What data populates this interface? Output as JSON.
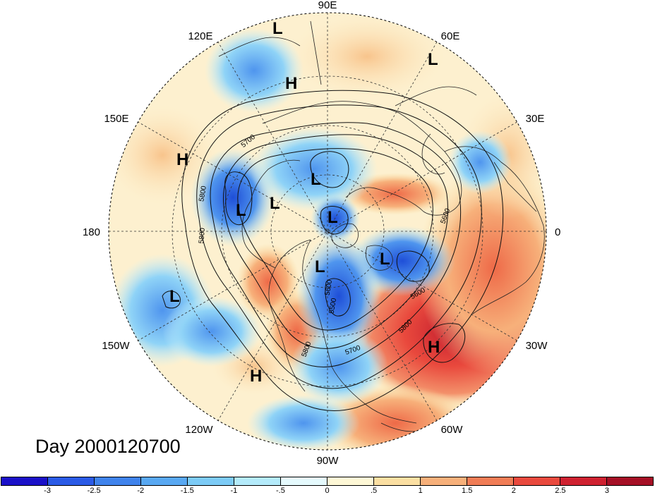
{
  "map": {
    "longitude_labels": [
      "90E",
      "60E",
      "30E",
      "0",
      "30W",
      "60W",
      "90W",
      "120W",
      "150W",
      "180",
      "150E",
      "120E"
    ],
    "contour_labels": [
      "5700",
      "5800",
      "5800",
      "5600",
      "5800",
      "5600",
      "5700",
      "5800",
      "5600",
      "5500"
    ],
    "pressure_centers": [
      {
        "type": "L"
      },
      {
        "type": "H"
      },
      {
        "type": "L"
      },
      {
        "type": "H"
      },
      {
        "type": "L"
      },
      {
        "type": "L"
      },
      {
        "type": "L"
      },
      {
        "type": "L"
      },
      {
        "type": "L"
      },
      {
        "type": "L"
      },
      {
        "type": "L"
      },
      {
        "type": "H"
      },
      {
        "type": "L"
      },
      {
        "type": "H"
      }
    ],
    "title": "Day 2000120700"
  },
  "colorbar": {
    "colors": [
      "#1a10c8",
      "#2a5ae6",
      "#3f83ec",
      "#58a8f2",
      "#7ccbf6",
      "#b4ebfb",
      "#e5fafd",
      "#fef8d6",
      "#fbdfa2",
      "#f7b07a",
      "#f07c55",
      "#e9493d",
      "#cf2130",
      "#a50f25"
    ],
    "tick_labels": [
      "-3",
      "-2.5",
      "-2",
      "-1.5",
      "-1",
      "-.5",
      "0",
      ".5",
      "1",
      "1.5",
      "2",
      "2.5",
      "3"
    ]
  }
}
